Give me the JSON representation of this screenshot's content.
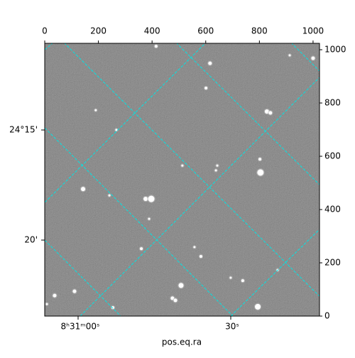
{
  "chart_data": {
    "type": "image",
    "xlabel": "pos.eq.ra",
    "xlim": [
      0,
      1024
    ],
    "ylim": [
      0,
      1024
    ],
    "xticks": [
      0,
      200,
      400,
      600,
      800,
      1000
    ],
    "yticks": [
      0,
      200,
      400,
      600,
      800,
      1000
    ],
    "ra_ticks": [
      "8ʰ31ᵐ00ˢ",
      "30ˢ"
    ],
    "dec_ticks": [
      "24°15'",
      "20'"
    ],
    "grid_color": "#00e5e5",
    "stars": {
      "x": [
        415,
        616,
        913,
        1000,
        601,
        828,
        841,
        267,
        190,
        802,
        804,
        513,
        643,
        638,
        143,
        241,
        376,
        397,
        389,
        360,
        558,
        582,
        868,
        693,
        738,
        508,
        111,
        37,
        476,
        487,
        794,
        254,
        8
      ],
      "y": [
        1013,
        949,
        979,
        968,
        856,
        768,
        763,
        699,
        773,
        589,
        539,
        565,
        565,
        547,
        477,
        453,
        440,
        440,
        365,
        253,
        259,
        224,
        173,
        144,
        133,
        115,
        93,
        77,
        67,
        59,
        35,
        32,
        45
      ],
      "size": [
        2,
        2.5,
        1.5,
        2.5,
        2,
        3,
        2.5,
        1.5,
        1.5,
        2,
        4.5,
        1.5,
        1.5,
        1.5,
        3,
        1.5,
        3,
        4.5,
        1.5,
        2,
        1.5,
        2,
        1.5,
        1.5,
        2,
        3.5,
        2.5,
        2.5,
        2.5,
        2.5,
        4,
        2,
        1.5
      ]
    }
  }
}
